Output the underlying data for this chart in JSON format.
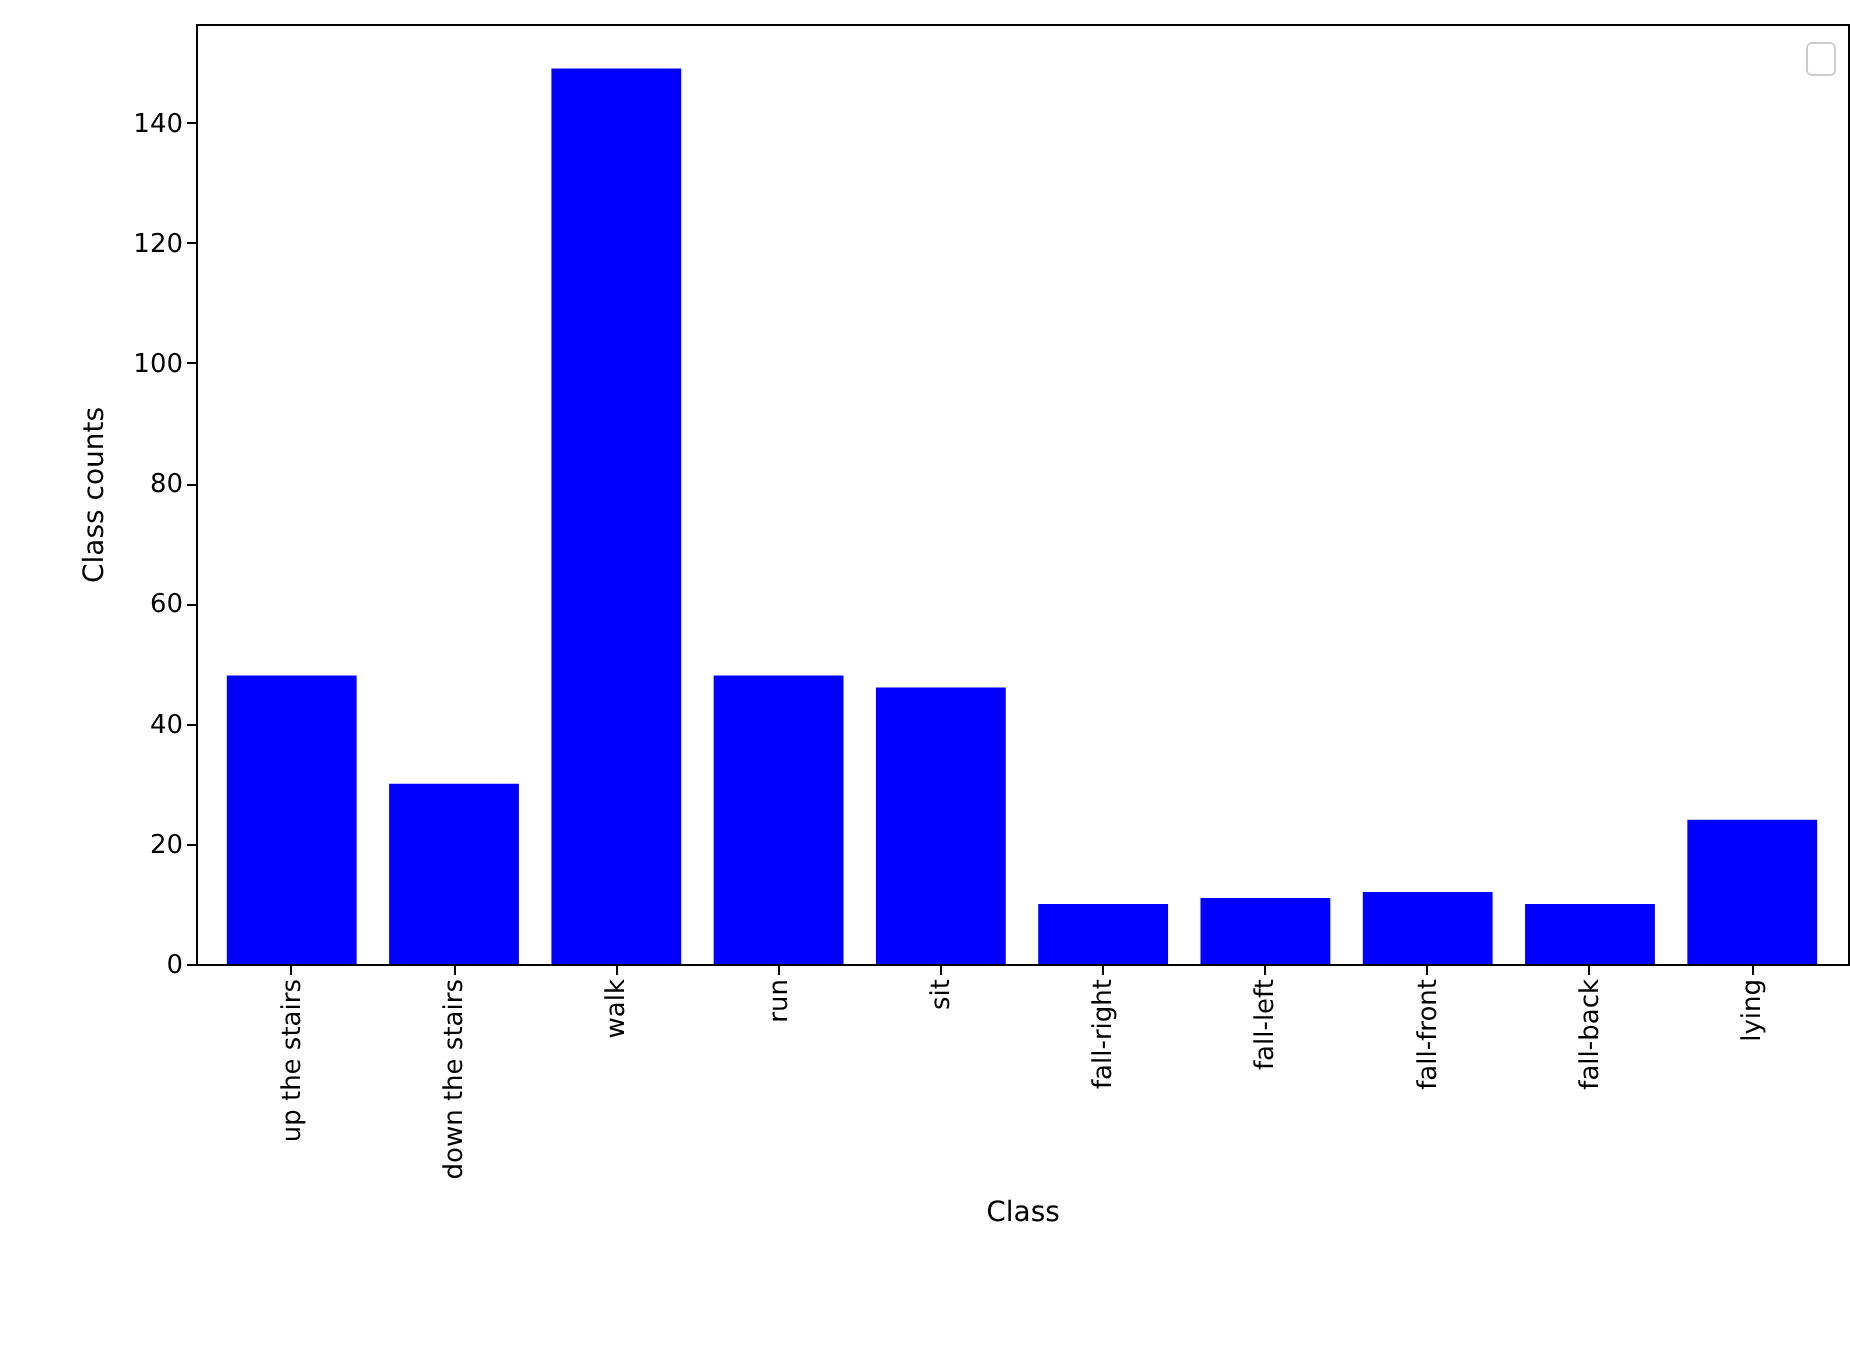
{
  "chart_data": {
    "type": "bar",
    "xlabel": "Class",
    "ylabel": "Class counts",
    "categories": [
      "up the stairs",
      "down the stairs",
      "walk",
      "run",
      "sit",
      "fall-right",
      "fall-left",
      "fall-front",
      "fall-back",
      "lying"
    ],
    "values": [
      48,
      30,
      149,
      48,
      46,
      10,
      11,
      12,
      10,
      24
    ],
    "color": "#0000ff",
    "ylim": [
      0,
      156.4
    ],
    "yticks": [
      0,
      20,
      40,
      60,
      80,
      100,
      120,
      140
    ],
    "grid": false
  }
}
